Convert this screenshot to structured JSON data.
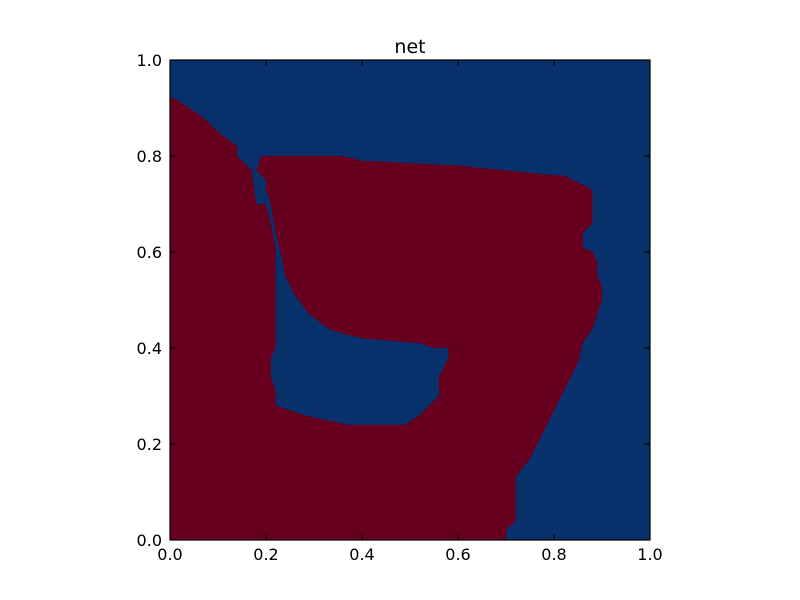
{
  "chart_data": {
    "type": "heatmap",
    "title": "net",
    "xlabel": "",
    "ylabel": "",
    "xlim": [
      0.0,
      1.0
    ],
    "ylim": [
      0.0,
      1.0
    ],
    "grid": false,
    "x_ticks": [
      "0.0",
      "0.2",
      "0.4",
      "0.6",
      "0.8",
      "1.0"
    ],
    "y_ticks": [
      "0.0",
      "0.2",
      "0.4",
      "0.6",
      "0.8",
      "1.0"
    ],
    "colors": {
      "background_class": "#08306b",
      "foreground_class": "#67001f"
    },
    "regions": [
      {
        "name": "foreground_class",
        "color": "#67001f",
        "outer_boundary": [
          [
            0.0,
            0.0
          ],
          [
            0.7,
            0.0
          ],
          [
            0.7,
            0.02
          ],
          [
            0.72,
            0.04
          ],
          [
            0.72,
            0.13
          ],
          [
            0.75,
            0.17
          ],
          [
            0.77,
            0.21
          ],
          [
            0.79,
            0.25
          ],
          [
            0.81,
            0.29
          ],
          [
            0.83,
            0.33
          ],
          [
            0.85,
            0.37
          ],
          [
            0.86,
            0.41
          ],
          [
            0.88,
            0.44
          ],
          [
            0.89,
            0.47
          ],
          [
            0.9,
            0.5
          ],
          [
            0.9,
            0.53
          ],
          [
            0.89,
            0.55
          ],
          [
            0.89,
            0.58
          ],
          [
            0.88,
            0.6
          ],
          [
            0.86,
            0.61
          ],
          [
            0.86,
            0.64
          ],
          [
            0.88,
            0.66
          ],
          [
            0.88,
            0.73
          ],
          [
            0.86,
            0.74
          ],
          [
            0.82,
            0.76
          ],
          [
            0.8,
            0.76
          ],
          [
            0.6,
            0.78
          ],
          [
            0.4,
            0.79
          ],
          [
            0.36,
            0.8
          ],
          [
            0.19,
            0.8
          ],
          [
            0.18,
            0.77
          ],
          [
            0.2,
            0.75
          ],
          [
            0.2,
            0.7
          ],
          [
            0.18,
            0.7
          ],
          [
            0.17,
            0.77
          ],
          [
            0.14,
            0.8
          ],
          [
            0.14,
            0.82
          ],
          [
            0.1,
            0.85
          ],
          [
            0.07,
            0.88
          ],
          [
            0.04,
            0.9
          ],
          [
            0.01,
            0.92
          ],
          [
            0.0,
            0.92
          ]
        ],
        "holes": [
          [
            [
              0.22,
              0.28
            ],
            [
              0.25,
              0.27
            ],
            [
              0.28,
              0.26
            ],
            [
              0.37,
              0.24
            ],
            [
              0.49,
              0.24
            ],
            [
              0.52,
              0.26
            ],
            [
              0.56,
              0.3
            ],
            [
              0.56,
              0.34
            ],
            [
              0.58,
              0.38
            ],
            [
              0.58,
              0.4
            ],
            [
              0.55,
              0.4
            ],
            [
              0.52,
              0.41
            ],
            [
              0.4,
              0.42
            ],
            [
              0.36,
              0.43
            ],
            [
              0.33,
              0.44
            ],
            [
              0.29,
              0.47
            ],
            [
              0.26,
              0.51
            ],
            [
              0.24,
              0.55
            ],
            [
              0.23,
              0.6
            ],
            [
              0.22,
              0.64
            ],
            [
              0.21,
              0.7
            ],
            [
              0.2,
              0.73
            ],
            [
              0.2,
              0.7
            ],
            [
              0.21,
              0.66
            ],
            [
              0.22,
              0.61
            ],
            [
              0.22,
              0.4
            ],
            [
              0.21,
              0.38
            ],
            [
              0.21,
              0.34
            ],
            [
              0.22,
              0.31
            ]
          ]
        ]
      }
    ]
  }
}
